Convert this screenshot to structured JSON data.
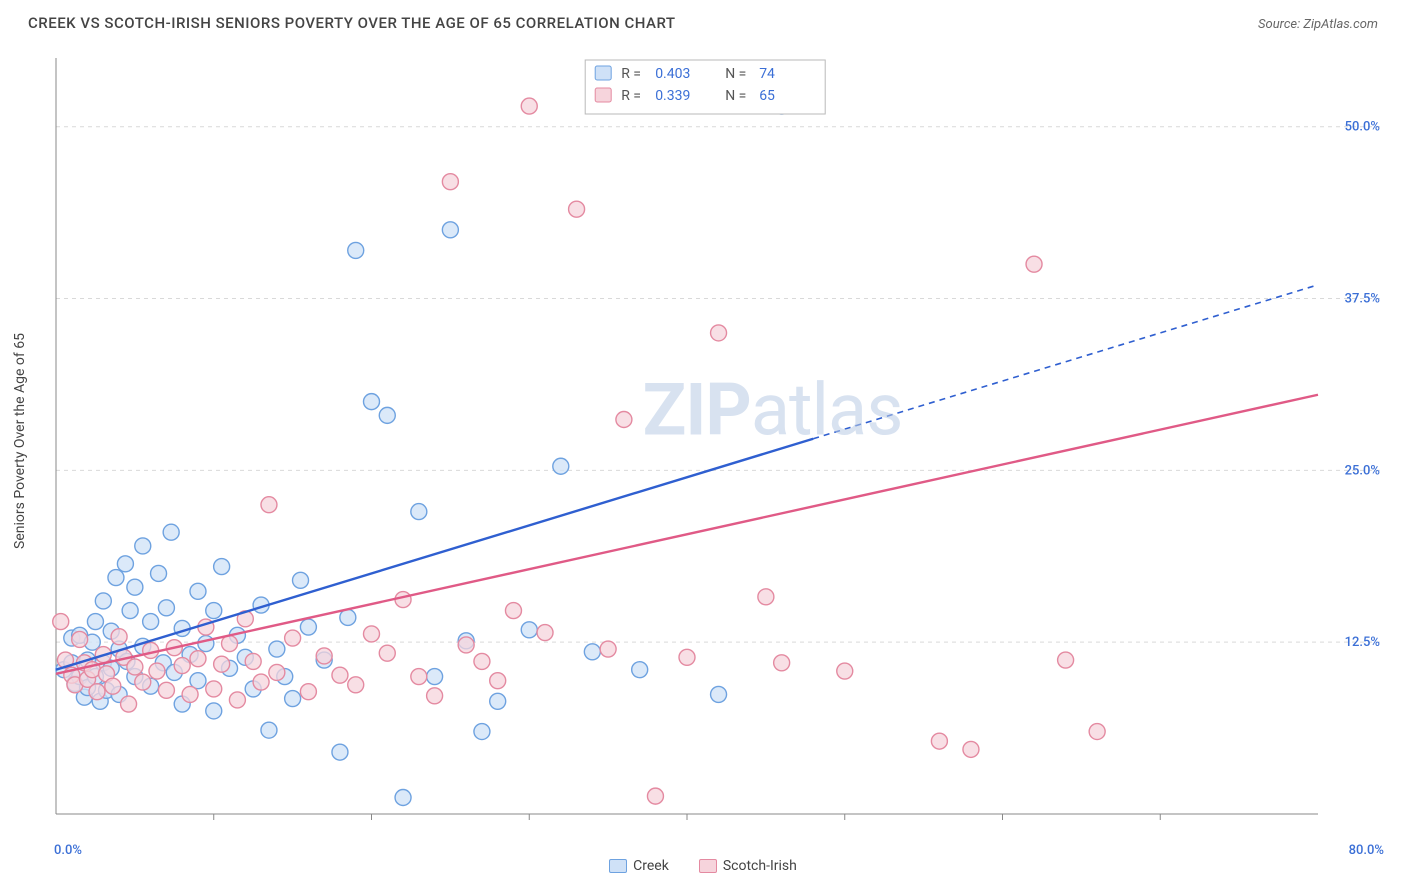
{
  "title": "CREEK VS SCOTCH-IRISH SENIORS POVERTY OVER THE AGE OF 65 CORRELATION CHART",
  "source": "Source: ZipAtlas.com",
  "y_axis_label": "Seniors Poverty Over the Age of 65",
  "watermark_zip": "ZIP",
  "watermark_atlas": "atlas",
  "chart": {
    "type": "scatter",
    "x_domain": [
      0,
      80
    ],
    "y_domain": [
      0,
      55
    ],
    "x_ticks_minor": [
      10,
      20,
      30,
      40,
      50,
      60,
      70
    ],
    "y_gridlines": [
      12.5,
      25.0,
      37.5,
      50.0
    ],
    "y_grid_labels": [
      "12.5%",
      "25.0%",
      "37.5%",
      "50.0%"
    ],
    "x_origin_label": "0.0%",
    "x_max_label": "80.0%",
    "grid_color": "#d9d9d9",
    "axis_line_color": "#888888",
    "background_color": "#ffffff",
    "tick_label_color": "#3b6fd6",
    "marker_radius": 8,
    "marker_stroke_width": 1.4,
    "series": [
      {
        "name": "Creek",
        "fill": "#cfe1f7",
        "stroke": "#6ea2e0",
        "line_color": "#2f5fd0",
        "R": "0.403",
        "N": "74",
        "trend": {
          "x1": 0,
          "y1": 10.5,
          "x2": 80,
          "y2": 38.5,
          "solid_until_x": 48
        },
        "points": [
          [
            0.5,
            10.5
          ],
          [
            1,
            11
          ],
          [
            1,
            12.8
          ],
          [
            1.2,
            9.5
          ],
          [
            1.5,
            10
          ],
          [
            1.5,
            13
          ],
          [
            1.8,
            8.5
          ],
          [
            2,
            11.2
          ],
          [
            2,
            9.2
          ],
          [
            2.3,
            12.5
          ],
          [
            2.5,
            14
          ],
          [
            2.5,
            10
          ],
          [
            2.8,
            8.2
          ],
          [
            3,
            11
          ],
          [
            3,
            15.5
          ],
          [
            3.2,
            9
          ],
          [
            3.5,
            13.3
          ],
          [
            3.5,
            10.6
          ],
          [
            3.8,
            17.2
          ],
          [
            4,
            12
          ],
          [
            4,
            8.7
          ],
          [
            4.4,
            18.2
          ],
          [
            4.5,
            11.1
          ],
          [
            4.7,
            14.8
          ],
          [
            5,
            16.5
          ],
          [
            5,
            10
          ],
          [
            5.5,
            12.2
          ],
          [
            5.5,
            19.5
          ],
          [
            6,
            9.3
          ],
          [
            6,
            14
          ],
          [
            6.5,
            17.5
          ],
          [
            6.8,
            11
          ],
          [
            7,
            15
          ],
          [
            7.3,
            20.5
          ],
          [
            7.5,
            10.3
          ],
          [
            8,
            13.5
          ],
          [
            8,
            8
          ],
          [
            8.5,
            11.6
          ],
          [
            9,
            16.2
          ],
          [
            9,
            9.7
          ],
          [
            9.5,
            12.4
          ],
          [
            10,
            14.8
          ],
          [
            10,
            7.5
          ],
          [
            10.5,
            18
          ],
          [
            11,
            10.6
          ],
          [
            11.5,
            13
          ],
          [
            12,
            11.4
          ],
          [
            12.5,
            9.1
          ],
          [
            13,
            15.2
          ],
          [
            13.5,
            6.1
          ],
          [
            14,
            12
          ],
          [
            14.5,
            10
          ],
          [
            15,
            8.4
          ],
          [
            15.5,
            17
          ],
          [
            16,
            13.6
          ],
          [
            17,
            11.2
          ],
          [
            18,
            4.5
          ],
          [
            18.5,
            14.3
          ],
          [
            19,
            41
          ],
          [
            20,
            30
          ],
          [
            21,
            29
          ],
          [
            22,
            1.2
          ],
          [
            23,
            22
          ],
          [
            24,
            10
          ],
          [
            25,
            42.5
          ],
          [
            26,
            12.6
          ],
          [
            27,
            6
          ],
          [
            28,
            8.2
          ],
          [
            30,
            13.4
          ],
          [
            32,
            25.3
          ],
          [
            34,
            11.8
          ],
          [
            37,
            10.5
          ],
          [
            42,
            8.7
          ],
          [
            46,
            51.5
          ]
        ]
      },
      {
        "name": "Scotch-Irish",
        "fill": "#f6d4dc",
        "stroke": "#e48aa1",
        "line_color": "#e05a86",
        "R": "0.339",
        "N": "65",
        "trend": {
          "x1": 0,
          "y1": 10.2,
          "x2": 80,
          "y2": 30.5,
          "solid_until_x": 80
        },
        "points": [
          [
            0.3,
            14
          ],
          [
            0.6,
            11.2
          ],
          [
            1,
            10.1
          ],
          [
            1.2,
            9.4
          ],
          [
            1.5,
            12.7
          ],
          [
            1.8,
            11
          ],
          [
            2,
            9.8
          ],
          [
            2.3,
            10.5
          ],
          [
            2.6,
            8.9
          ],
          [
            3,
            11.6
          ],
          [
            3.2,
            10.2
          ],
          [
            3.6,
            9.3
          ],
          [
            4,
            12.9
          ],
          [
            4.3,
            11.4
          ],
          [
            4.6,
            8
          ],
          [
            5,
            10.7
          ],
          [
            5.5,
            9.6
          ],
          [
            6,
            11.9
          ],
          [
            6.4,
            10.4
          ],
          [
            7,
            9
          ],
          [
            7.5,
            12.1
          ],
          [
            8,
            10.8
          ],
          [
            8.5,
            8.7
          ],
          [
            9,
            11.3
          ],
          [
            9.5,
            13.6
          ],
          [
            10,
            9.1
          ],
          [
            10.5,
            10.9
          ],
          [
            11,
            12.4
          ],
          [
            11.5,
            8.3
          ],
          [
            12,
            14.2
          ],
          [
            12.5,
            11.1
          ],
          [
            13,
            9.6
          ],
          [
            13.5,
            22.5
          ],
          [
            14,
            10.3
          ],
          [
            15,
            12.8
          ],
          [
            16,
            8.9
          ],
          [
            17,
            11.5
          ],
          [
            18,
            10.1
          ],
          [
            19,
            9.4
          ],
          [
            20,
            13.1
          ],
          [
            21,
            11.7
          ],
          [
            22,
            15.6
          ],
          [
            23,
            10
          ],
          [
            24,
            8.6
          ],
          [
            25,
            46
          ],
          [
            26,
            12.3
          ],
          [
            27,
            11.1
          ],
          [
            28,
            9.7
          ],
          [
            29,
            14.8
          ],
          [
            30,
            51.5
          ],
          [
            31,
            13.2
          ],
          [
            33,
            44
          ],
          [
            35,
            12
          ],
          [
            36,
            28.7
          ],
          [
            38,
            1.3
          ],
          [
            40,
            11.4
          ],
          [
            42,
            35
          ],
          [
            45,
            15.8
          ],
          [
            46,
            11
          ],
          [
            50,
            10.4
          ],
          [
            56,
            5.3
          ],
          [
            58,
            4.7
          ],
          [
            62,
            40
          ],
          [
            64,
            11.2
          ],
          [
            66,
            6
          ]
        ]
      }
    ],
    "stats_box": {
      "border_color": "#b9b9b9",
      "bg": "#ffffff",
      "label_color": "#555555",
      "value_color": "#3b6fd6",
      "font_size": 14
    },
    "bottom_legend": [
      {
        "label": "Creek",
        "fill": "#cfe1f7",
        "stroke": "#6ea2e0"
      },
      {
        "label": "Scotch-Irish",
        "fill": "#f6d4dc",
        "stroke": "#e48aa1"
      }
    ]
  }
}
